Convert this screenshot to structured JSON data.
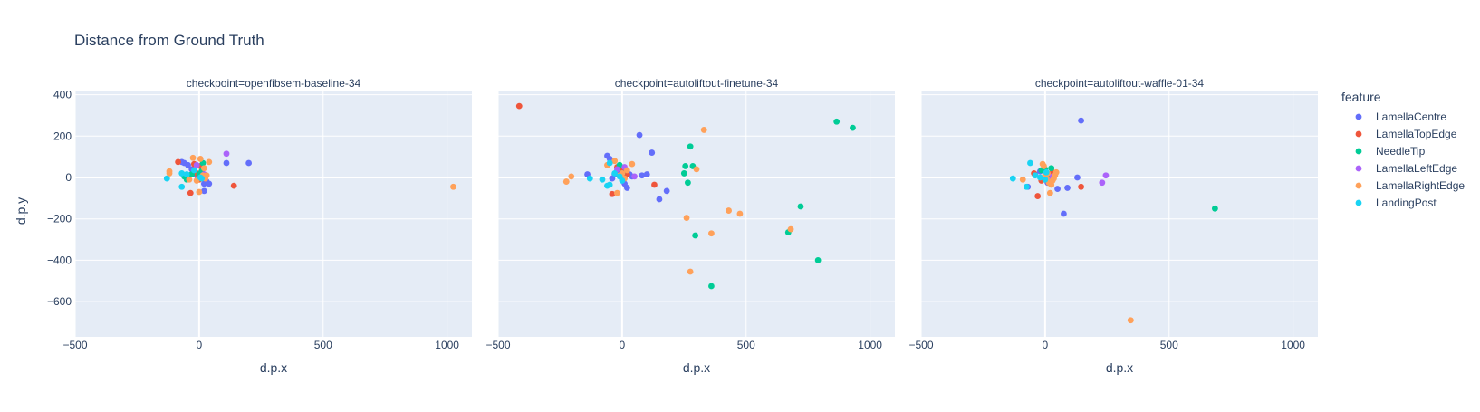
{
  "chart_data": {
    "type": "scatter",
    "title": "Distance from Ground Truth",
    "xlabel": "d.p.x",
    "ylabel": "d.p.y",
    "xlim": [
      -500,
      1100
    ],
    "ylim": [
      -770,
      420
    ],
    "x_ticks": [
      -500,
      0,
      500,
      1000
    ],
    "y_ticks": [
      -600,
      -400,
      -200,
      0,
      200,
      400
    ],
    "grid": true,
    "legend": {
      "title": "feature",
      "position": "right",
      "entries": [
        "LamellaCentre",
        "LamellaTopEdge",
        "NeedleTip",
        "LamellaLeftEdge",
        "LamellaRightEdge",
        "LandingPost"
      ]
    },
    "colors": {
      "LamellaCentre": "#636efa",
      "LamellaTopEdge": "#ef553b",
      "NeedleTip": "#00cc96",
      "LamellaLeftEdge": "#ab63fa",
      "LamellaRightEdge": "#ffa15a",
      "LandingPost": "#19d3f3",
      "plot_bg": "#e5ecf6",
      "grid": "#ffffff",
      "text": "#2a3f5f"
    },
    "panels": [
      {
        "title": "checkpoint=openfibsem-baseline-34",
        "series": [
          {
            "name": "LamellaCentre",
            "points": [
              [
                -70,
                75
              ],
              [
                -60,
                70
              ],
              [
                -45,
                60
              ],
              [
                -30,
                40
              ],
              [
                -20,
                30
              ],
              [
                -10,
                10
              ],
              [
                0,
                5
              ],
              [
                10,
                20
              ],
              [
                20,
                -30
              ],
              [
                30,
                -20
              ],
              [
                40,
                -30
              ],
              [
                20,
                -65
              ],
              [
                110,
                70
              ],
              [
                200,
                70
              ]
            ]
          },
          {
            "name": "LamellaTopEdge",
            "points": [
              [
                -85,
                75
              ],
              [
                -35,
                -75
              ],
              [
                -20,
                65
              ],
              [
                -10,
                20
              ],
              [
                0,
                -10
              ],
              [
                5,
                55
              ],
              [
                20,
                5
              ],
              [
                140,
                -40
              ]
            ]
          },
          {
            "name": "NeedleTip",
            "points": [
              [
                -60,
                5
              ],
              [
                -50,
                -10
              ],
              [
                -30,
                15
              ],
              [
                0,
                15
              ],
              [
                10,
                30
              ],
              [
                15,
                70
              ]
            ]
          },
          {
            "name": "LamellaLeftEdge",
            "points": [
              [
                -10,
                60
              ],
              [
                20,
                15
              ],
              [
                110,
                115
              ]
            ]
          },
          {
            "name": "LamellaRightEdge",
            "points": [
              [
                -120,
                30
              ],
              [
                -120,
                20
              ],
              [
                -40,
                -10
              ],
              [
                -25,
                95
              ],
              [
                -10,
                -15
              ],
              [
                0,
                -70
              ],
              [
                5,
                90
              ],
              [
                10,
                0
              ],
              [
                15,
                10
              ],
              [
                20,
                45
              ],
              [
                25,
                -5
              ],
              [
                30,
                10
              ],
              [
                40,
                75
              ],
              [
                1025,
                -45
              ]
            ]
          },
          {
            "name": "LandingPost",
            "points": [
              [
                -130,
                -5
              ],
              [
                -70,
                -45
              ],
              [
                -70,
                20
              ],
              [
                -50,
                15
              ],
              [
                -20,
                35
              ],
              [
                5,
                0
              ],
              [
                10,
                -5
              ]
            ]
          }
        ]
      },
      {
        "title": "checkpoint=autoliftout-finetune-34",
        "series": [
          {
            "name": "LamellaCentre",
            "points": [
              [
                -60,
                105
              ],
              [
                -50,
                90
              ],
              [
                -40,
                -5
              ],
              [
                -30,
                15
              ],
              [
                -20,
                30
              ],
              [
                -10,
                45
              ],
              [
                0,
                -10
              ],
              [
                10,
                -30
              ],
              [
                20,
                -50
              ],
              [
                30,
                15
              ],
              [
                40,
                5
              ],
              [
                70,
                205
              ],
              [
                80,
                10
              ],
              [
                100,
                15
              ],
              [
                120,
                120
              ],
              [
                150,
                -105
              ],
              [
                180,
                -65
              ],
              [
                -140,
                15
              ]
            ]
          },
          {
            "name": "LamellaTopEdge",
            "points": [
              [
                -415,
                345
              ],
              [
                -40,
                -80
              ],
              [
                -20,
                50
              ],
              [
                0,
                35
              ],
              [
                10,
                0
              ],
              [
                20,
                15
              ],
              [
                130,
                -35
              ]
            ]
          },
          {
            "name": "NeedleTip",
            "points": [
              [
                -10,
                60
              ],
              [
                0,
                20
              ],
              [
                250,
                20
              ],
              [
                255,
                55
              ],
              [
                265,
                -25
              ],
              [
                275,
                150
              ],
              [
                285,
                55
              ],
              [
                295,
                -280
              ],
              [
                360,
                -525
              ],
              [
                670,
                -265
              ],
              [
                720,
                -140
              ],
              [
                790,
                -400
              ],
              [
                865,
                270
              ],
              [
                930,
                240
              ]
            ]
          },
          {
            "name": "LamellaLeftEdge",
            "points": [
              [
                -20,
                40
              ],
              [
                10,
                50
              ],
              [
                50,
                5
              ]
            ]
          },
          {
            "name": "LamellaRightEdge",
            "points": [
              [
                -225,
                -20
              ],
              [
                -205,
                5
              ],
              [
                -60,
                60
              ],
              [
                -30,
                80
              ],
              [
                -20,
                -75
              ],
              [
                -10,
                10
              ],
              [
                0,
                20
              ],
              [
                10,
                -5
              ],
              [
                20,
                35
              ],
              [
                40,
                65
              ],
              [
                260,
                -195
              ],
              [
                275,
                -455
              ],
              [
                300,
                40
              ],
              [
                330,
                230
              ],
              [
                360,
                -270
              ],
              [
                430,
                -160
              ],
              [
                475,
                -175
              ],
              [
                680,
                -250
              ]
            ]
          },
          {
            "name": "LandingPost",
            "points": [
              [
                -130,
                -5
              ],
              [
                -80,
                -10
              ],
              [
                -60,
                -40
              ],
              [
                -50,
                -35
              ],
              [
                -50,
                70
              ],
              [
                -30,
                20
              ],
              [
                -10,
                5
              ],
              [
                0,
                -15
              ]
            ]
          }
        ]
      },
      {
        "title": "checkpoint=autoliftout-waffle-01-34",
        "series": [
          {
            "name": "LamellaCentre",
            "points": [
              [
                -70,
                -45
              ],
              [
                -40,
                15
              ],
              [
                -20,
                30
              ],
              [
                0,
                5
              ],
              [
                10,
                -25
              ],
              [
                20,
                10
              ],
              [
                50,
                -55
              ],
              [
                75,
                -175
              ],
              [
                90,
                -50
              ],
              [
                130,
                0
              ],
              [
                145,
                275
              ]
            ]
          },
          {
            "name": "LamellaTopEdge",
            "points": [
              [
                -45,
                20
              ],
              [
                -30,
                -90
              ],
              [
                -15,
                -15
              ],
              [
                10,
                10
              ],
              [
                30,
                25
              ],
              [
                145,
                -45
              ]
            ]
          },
          {
            "name": "NeedleTip",
            "points": [
              [
                -15,
                35
              ],
              [
                0,
                40
              ],
              [
                10,
                5
              ],
              [
                25,
                45
              ],
              [
                685,
                -150
              ]
            ]
          },
          {
            "name": "LamellaLeftEdge",
            "points": [
              [
                10,
                -10
              ],
              [
                30,
                5
              ],
              [
                230,
                -25
              ],
              [
                245,
                10
              ]
            ]
          },
          {
            "name": "LamellaRightEdge",
            "points": [
              [
                -10,
                65
              ],
              [
                -5,
                55
              ],
              [
                0,
                10
              ],
              [
                5,
                -5
              ],
              [
                10,
                20
              ],
              [
                15,
                -25
              ],
              [
                20,
                -75
              ],
              [
                25,
                -35
              ],
              [
                30,
                -15
              ],
              [
                35,
                -5
              ],
              [
                40,
                10
              ],
              [
                45,
                25
              ],
              [
                -90,
                -10
              ],
              [
                345,
                -690
              ]
            ]
          },
          {
            "name": "LandingPost",
            "points": [
              [
                -130,
                -5
              ],
              [
                -75,
                -45
              ],
              [
                -60,
                70
              ],
              [
                -40,
                10
              ],
              [
                -20,
                0
              ],
              [
                0,
                -10
              ],
              [
                5,
                25
              ]
            ]
          }
        ]
      }
    ]
  }
}
